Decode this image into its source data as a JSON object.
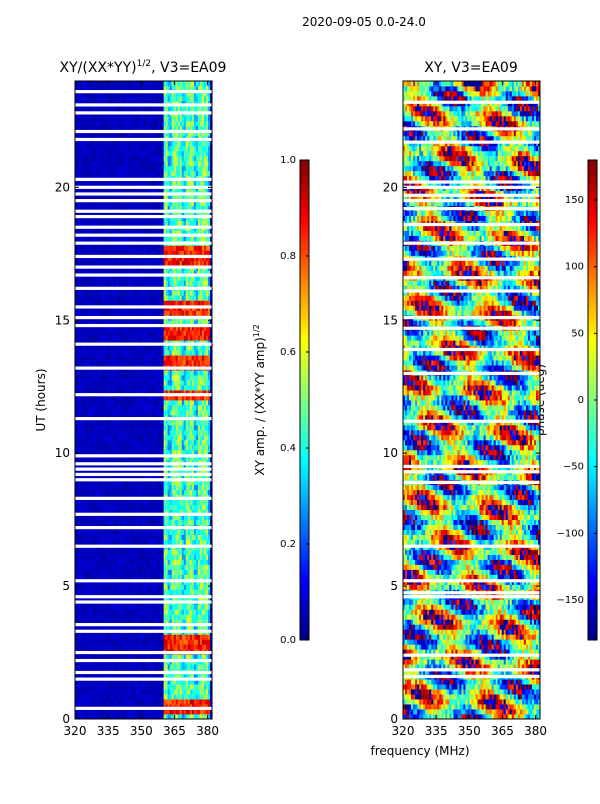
{
  "suptitle": "2020-09-05 0.0-24.0",
  "chart_data": [
    {
      "type": "heatmap",
      "title_main": "XY/(XX*YY)",
      "title_sup": "1/2",
      "title_tail": ", V3=EA09",
      "xlabel": "",
      "ylabel": "UT (hours)",
      "xlim": [
        320,
        382
      ],
      "ylim": [
        0,
        24
      ],
      "xticks": [
        320,
        335,
        350,
        365,
        380
      ],
      "yticks": [
        0,
        5,
        10,
        15,
        20
      ],
      "colorbar": {
        "label_main": "XY amp. / (XX*YY amp)",
        "label_sup": "1/2",
        "range": [
          0.0,
          1.0
        ],
        "ticks": [
          0.0,
          0.2,
          0.4,
          0.6,
          0.8,
          1.0
        ],
        "tick_labels": [
          "0.0",
          "0.2",
          "0.4",
          "0.6",
          "0.8",
          "1.0"
        ],
        "colormap": "jet"
      },
      "active_band_mhz": [
        360,
        381
      ],
      "blank_rows_hours": [
        0.4,
        1.5,
        1.75,
        2.2,
        2.5,
        3.3,
        3.55,
        4.4,
        4.6,
        5.2,
        6.5,
        7.2,
        7.7,
        8.3,
        9.0,
        9.2,
        9.4,
        9.6,
        9.9,
        11.3,
        12.2,
        13.2,
        14.1,
        14.8,
        15.1,
        15.5,
        16.2,
        16.7,
        17.0,
        17.4,
        17.9,
        18.2,
        18.5,
        18.9,
        19.1,
        19.5,
        19.75,
        20.0,
        20.3,
        21.8,
        22.1,
        22.8,
        23.1,
        23.6
      ],
      "hot_rows_hours": [
        0.5,
        2.6,
        3.0,
        12.2,
        13.4,
        14.5,
        15.5,
        17.3,
        17.5
      ]
    },
    {
      "type": "heatmap",
      "title": "XY, V3=EA09",
      "xlabel": "frequency (MHz)",
      "ylabel": "",
      "xlim": [
        320,
        382
      ],
      "ylim": [
        0,
        24
      ],
      "xticks": [
        320,
        335,
        350,
        365,
        380
      ],
      "yticks": [
        0,
        5,
        10,
        15,
        20
      ],
      "colorbar": {
        "label": "phase (deg)",
        "range": [
          -180,
          180
        ],
        "ticks": [
          -150,
          -100,
          -50,
          0,
          50,
          100,
          150
        ],
        "tick_labels": [
          "−150",
          "−100",
          "−50",
          "0",
          "50",
          "100",
          "150"
        ],
        "colormap": "jet"
      },
      "blank_rows_hours": [
        1.6,
        1.85,
        2.4,
        4.6,
        4.75,
        5.2,
        6.5,
        8.9,
        9.3,
        9.5,
        11.2,
        13.0,
        13.9,
        14.7,
        15.1,
        16.1,
        16.6,
        17.3,
        17.9,
        18.6,
        19.2,
        19.5,
        19.7,
        20.0,
        20.2,
        21.7,
        22.2,
        23.2
      ]
    }
  ]
}
